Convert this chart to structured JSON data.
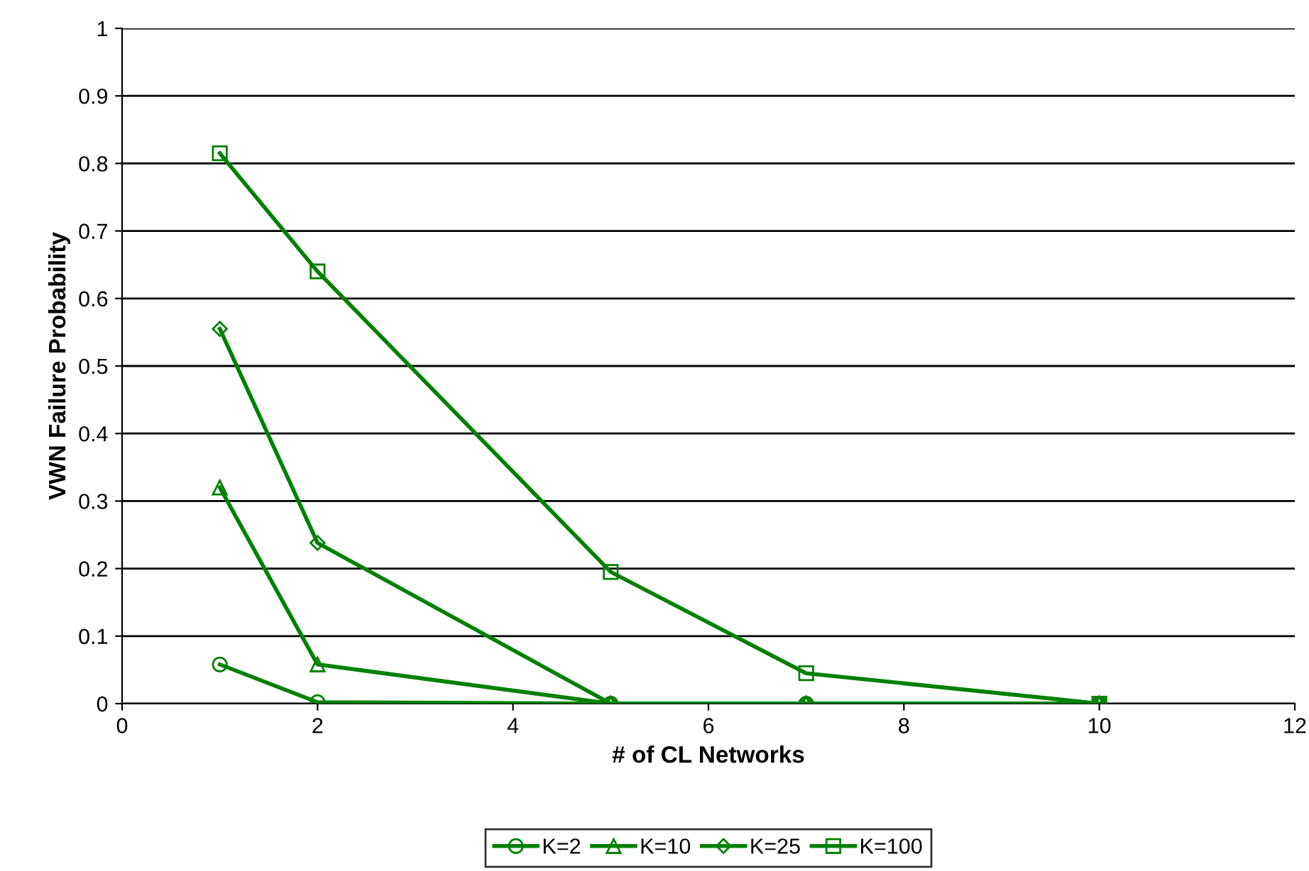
{
  "chart_data": {
    "type": "line",
    "xlabel": "# of CL Networks",
    "ylabel": "VWN Failure Probability",
    "x": [
      1,
      2,
      5,
      7,
      10
    ],
    "series": [
      {
        "name": "K=2",
        "color": "#008000",
        "marker": "circle",
        "values": [
          0.058,
          0.002,
          0,
          0,
          0
        ]
      },
      {
        "name": "K=10",
        "color": "#008000",
        "marker": "triangle",
        "values": [
          0.32,
          0.058,
          0,
          0,
          0
        ]
      },
      {
        "name": "K=25",
        "color": "#008000",
        "marker": "diamond",
        "values": [
          0.555,
          0.238,
          0,
          0,
          0
        ]
      },
      {
        "name": "K=100",
        "color": "#008000",
        "marker": "square",
        "values": [
          0.815,
          0.64,
          0.195,
          0.045,
          0
        ]
      }
    ],
    "xlim": [
      0,
      12
    ],
    "xticks": [
      0,
      2,
      4,
      6,
      8,
      10,
      12
    ],
    "ylim": [
      0,
      1
    ],
    "yticks": [
      0,
      0.1,
      0.2,
      0.3,
      0.4,
      0.5,
      0.6,
      0.7,
      0.8,
      0.9,
      1
    ],
    "grid": "y",
    "legend": "bottom",
    "line_style": "solid"
  }
}
